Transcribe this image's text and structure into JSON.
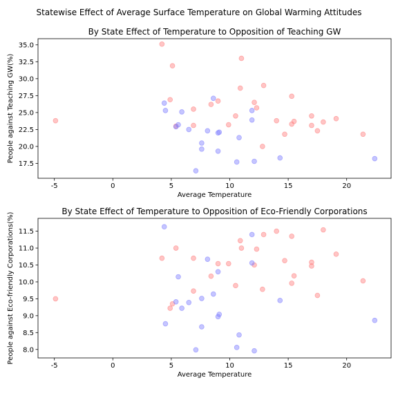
{
  "figure": {
    "suptitle": "Statewise Effect of Average Surface Temperature on Global Warming Attitudes",
    "colors": {
      "red_series": "#ff7f7f",
      "blue_series": "#7f7fff",
      "axes": "#000000"
    }
  },
  "chart_data": [
    {
      "type": "scatter",
      "title": "By State Effect of Temperature to Opposition of Teaching GW",
      "xlabel": "Average Temperature",
      "ylabel": "People against Teaching GW(%)",
      "xlim": [
        -6.4,
        23.8
      ],
      "ylim": [
        15.3,
        35.9
      ],
      "xticks": [
        -5,
        0,
        5,
        10,
        15,
        20
      ],
      "yticks": [
        17.5,
        20.0,
        22.5,
        25.0,
        27.5,
        30.0,
        32.5,
        35.0
      ],
      "grid": false,
      "series": [
        {
          "color": "#ff7f7f",
          "points": [
            [
              -4.9,
              23.8
            ],
            [
              4.2,
              35.1
            ],
            [
              4.9,
              26.9
            ],
            [
              5.1,
              31.9
            ],
            [
              5.4,
              23.0
            ],
            [
              6.9,
              25.5
            ],
            [
              6.9,
              23.1
            ],
            [
              8.4,
              26.2
            ],
            [
              9.0,
              26.7
            ],
            [
              9.9,
              23.2
            ],
            [
              10.5,
              24.5
            ],
            [
              10.9,
              28.6
            ],
            [
              11.0,
              33.0
            ],
            [
              12.1,
              26.5
            ],
            [
              12.3,
              25.7
            ],
            [
              12.8,
              20.0
            ],
            [
              12.9,
              29.0
            ],
            [
              14.0,
              23.8
            ],
            [
              14.7,
              21.8
            ],
            [
              15.3,
              27.4
            ],
            [
              15.3,
              23.3
            ],
            [
              15.5,
              23.7
            ],
            [
              17.0,
              24.5
            ],
            [
              17.0,
              23.1
            ],
            [
              17.5,
              22.3
            ],
            [
              18.0,
              23.6
            ],
            [
              19.1,
              24.1
            ],
            [
              21.4,
              21.8
            ]
          ]
        },
        {
          "color": "#7f7fff",
          "points": [
            [
              4.4,
              26.4
            ],
            [
              4.5,
              25.3
            ],
            [
              5.4,
              22.9
            ],
            [
              5.6,
              23.2
            ],
            [
              5.9,
              25.1
            ],
            [
              6.5,
              22.5
            ],
            [
              7.1,
              16.4
            ],
            [
              7.6,
              20.5
            ],
            [
              7.6,
              19.6
            ],
            [
              8.1,
              22.3
            ],
            [
              8.6,
              27.1
            ],
            [
              9.0,
              22.0
            ],
            [
              9.1,
              22.1
            ],
            [
              9.0,
              19.3
            ],
            [
              10.6,
              17.7
            ],
            [
              10.8,
              21.3
            ],
            [
              11.9,
              25.3
            ],
            [
              11.9,
              23.9
            ],
            [
              12.1,
              17.8
            ],
            [
              14.3,
              18.3
            ],
            [
              22.4,
              18.2
            ]
          ]
        }
      ]
    },
    {
      "type": "scatter",
      "title": "By State Effect of Temperature to Opposition of Eco-Friendly Corporations",
      "xlabel": "Average Temperature",
      "ylabel": "People against Eco-friendly Corporations(%)",
      "xlim": [
        -6.4,
        23.8
      ],
      "ylim": [
        7.75,
        11.88
      ],
      "xticks": [
        -5,
        0,
        5,
        10,
        15,
        20
      ],
      "yticks": [
        8.0,
        8.5,
        9.0,
        9.5,
        10.0,
        10.5,
        11.0,
        11.5
      ],
      "grid": false,
      "series": [
        {
          "color": "#ff7f7f",
          "points": [
            [
              -4.9,
              9.5
            ],
            [
              4.2,
              10.7
            ],
            [
              4.9,
              9.22
            ],
            [
              5.1,
              9.35
            ],
            [
              5.4,
              11.0
            ],
            [
              6.9,
              10.7
            ],
            [
              6.9,
              9.73
            ],
            [
              8.4,
              10.17
            ],
            [
              9.0,
              10.54
            ],
            [
              9.9,
              10.54
            ],
            [
              10.5,
              9.89
            ],
            [
              10.9,
              11.22
            ],
            [
              11.0,
              11.0
            ],
            [
              12.1,
              10.5
            ],
            [
              12.3,
              10.97
            ],
            [
              12.8,
              9.78
            ],
            [
              12.9,
              11.4
            ],
            [
              14.0,
              11.5
            ],
            [
              14.7,
              10.63
            ],
            [
              15.3,
              11.35
            ],
            [
              15.3,
              9.96
            ],
            [
              15.5,
              10.18
            ],
            [
              17.0,
              10.58
            ],
            [
              17.0,
              10.47
            ],
            [
              17.5,
              9.6
            ],
            [
              18.0,
              11.54
            ],
            [
              19.1,
              10.82
            ],
            [
              21.4,
              10.03
            ]
          ]
        },
        {
          "color": "#7f7fff",
          "points": [
            [
              4.4,
              11.63
            ],
            [
              4.5,
              8.76
            ],
            [
              5.4,
              9.41
            ],
            [
              5.6,
              10.15
            ],
            [
              5.9,
              9.22
            ],
            [
              6.5,
              9.39
            ],
            [
              7.1,
              7.99
            ],
            [
              7.6,
              9.51
            ],
            [
              7.6,
              8.67
            ],
            [
              8.1,
              10.67
            ],
            [
              8.6,
              9.64
            ],
            [
              9.0,
              10.3
            ],
            [
              9.0,
              8.97
            ],
            [
              9.1,
              9.04
            ],
            [
              10.6,
              8.06
            ],
            [
              10.8,
              8.43
            ],
            [
              11.9,
              11.4
            ],
            [
              11.9,
              10.56
            ],
            [
              12.1,
              7.96
            ],
            [
              14.3,
              9.45
            ],
            [
              22.4,
              8.86
            ]
          ]
        }
      ]
    }
  ]
}
